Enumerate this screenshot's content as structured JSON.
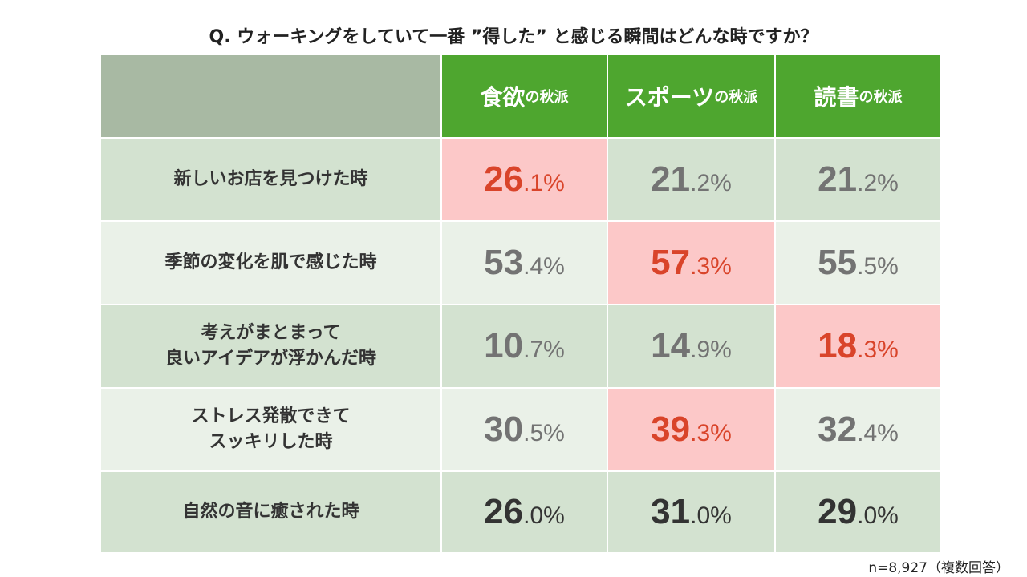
{
  "chart_data": {
    "type": "table",
    "title": "Q. ウォーキングをしていて一番 ”得した” と感じる瞬間はどんな時ですか？",
    "columns": [
      {
        "main": "食欲",
        "suffix": "の秋派"
      },
      {
        "main": "スポーツ",
        "suffix": "の秋派"
      },
      {
        "main": "読書",
        "suffix": "の秋派"
      }
    ],
    "rows": [
      {
        "label": "新しいお店を見つけた時",
        "values": [
          26.1,
          21.2,
          21.2
        ],
        "highlight": 0
      },
      {
        "label": "季節の変化を肌で感じた時",
        "values": [
          53.4,
          57.3,
          55.5
        ],
        "highlight": 1
      },
      {
        "label": "考えがまとまって\n良いアイデアが浮かんだ時",
        "values": [
          10.7,
          14.9,
          18.3
        ],
        "highlight": 2
      },
      {
        "label": "ストレス発散できて\nスッキリした時",
        "values": [
          30.5,
          39.3,
          32.4
        ],
        "highlight": 1
      },
      {
        "label": "自然の音に癒された時",
        "values": [
          26.0,
          31.0,
          29.0
        ],
        "highlight": null
      }
    ],
    "unit": "%",
    "note": "n=8,927（複数回答）",
    "colors": {
      "header": "#4ea62f",
      "header_blank": "#a8b9a3",
      "row_dark": "#d3e2d0",
      "row_light": "#eaf1e8",
      "highlight_bg": "#fcc8c8",
      "highlight_text": "#d9442a"
    }
  }
}
